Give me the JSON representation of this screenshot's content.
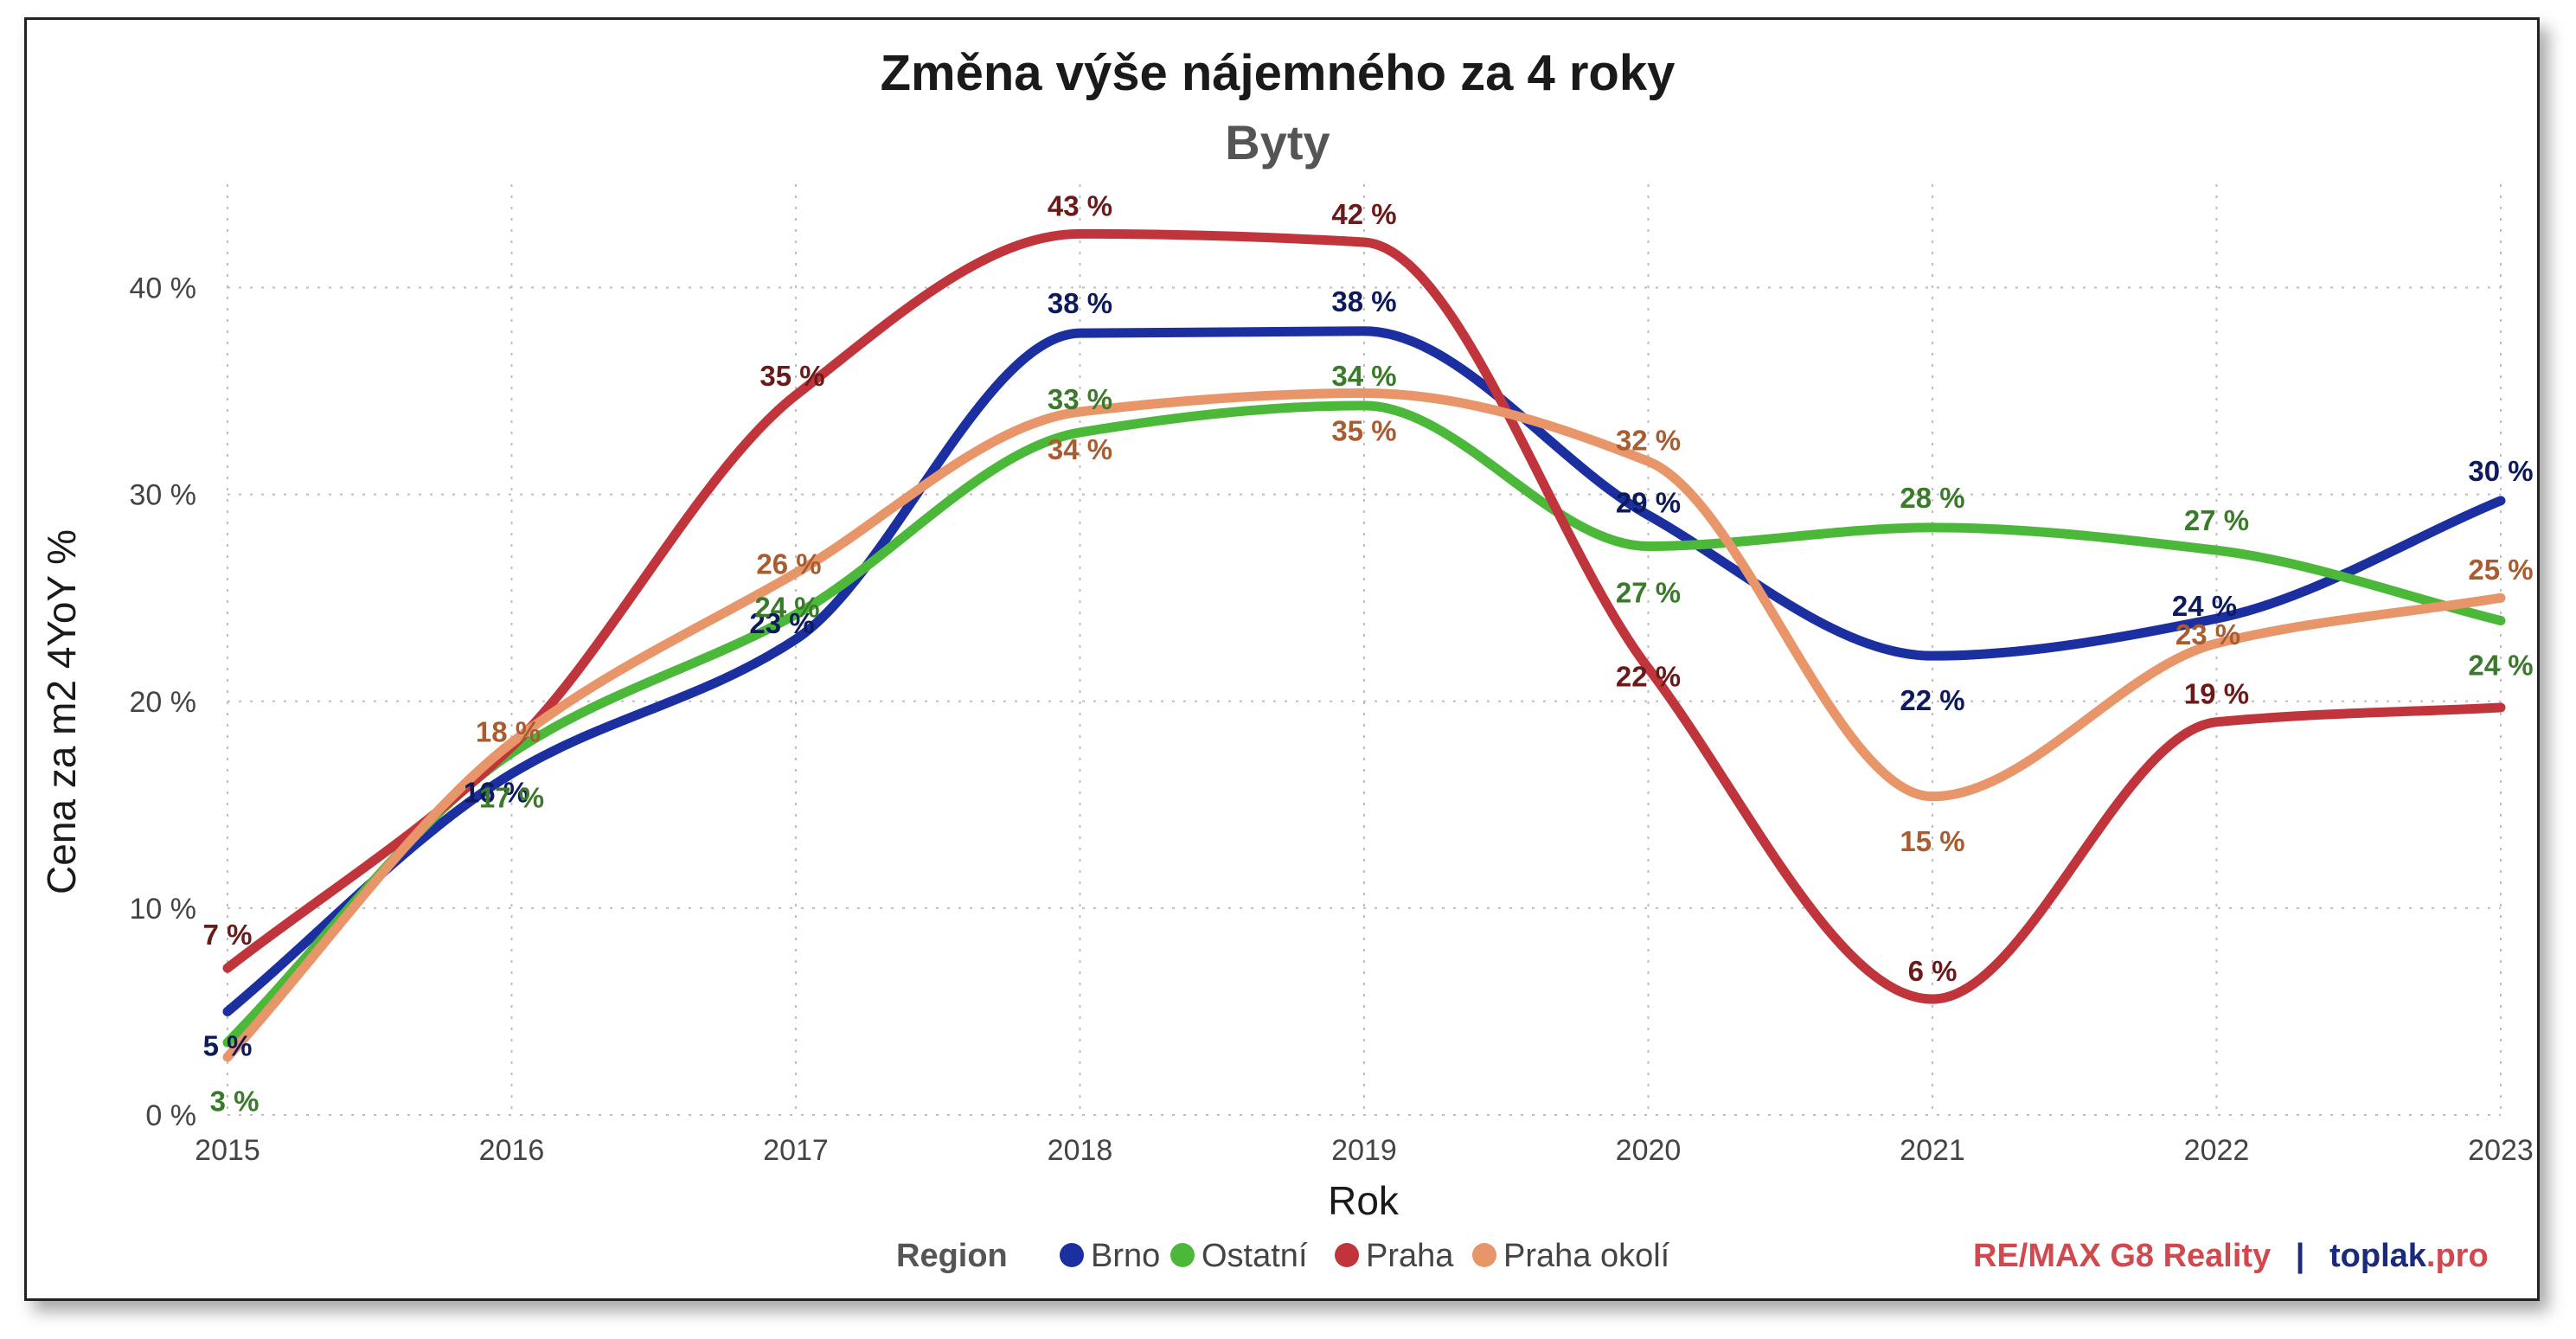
{
  "chart_data": {
    "type": "line",
    "title": "Změna výše nájemného za 4 roky",
    "subtitle": "Byty",
    "xlabel": "Rok",
    "ylabel": "Cena za m2 4YoY %",
    "x": [
      2015,
      2016,
      2017,
      2018,
      2019,
      2020,
      2021,
      2022,
      2023
    ],
    "ylim": [
      0,
      45
    ],
    "yticks": [
      0,
      10,
      20,
      30,
      40
    ],
    "ytick_labels": [
      "0 %",
      "10 %",
      "20 %",
      "30 %",
      "40 %"
    ],
    "grid": true,
    "legend_title": "Region",
    "legend_position": "bottom",
    "series": [
      {
        "name": "Brno",
        "color": "#1b2fa0",
        "label_color": "#0d1a5c",
        "values": [
          5,
          16.5,
          23,
          37.8,
          37.9,
          29,
          22.2,
          24,
          29.7
        ],
        "labels": [
          "5 %",
          "16 %",
          "23 %",
          "38 %",
          "38 %",
          "29 %",
          "22 %",
          "24 %",
          "30 %"
        ]
      },
      {
        "name": "Ostatní",
        "color": "#4cb83a",
        "label_color": "#3a7a2a",
        "values": [
          3.5,
          17.5,
          24.2,
          33,
          34.3,
          27.5,
          28.4,
          27.3,
          23.9
        ],
        "labels": [
          "3 %",
          "17 %",
          "24 %",
          "33 %",
          "34 %",
          "27 %",
          "28 %",
          "27 %",
          "24 %"
        ]
      },
      {
        "name": "Praha",
        "color": "#c0343c",
        "label_color": "#6b1a1a",
        "values": [
          7.1,
          17.8,
          34.8,
          42.6,
          42.2,
          21.6,
          5.6,
          19,
          19.7
        ],
        "labels": [
          "7 %",
          "",
          "35 %",
          "43 %",
          "42 %",
          "22 %",
          "6 %",
          "19 %",
          ""
        ]
      },
      {
        "name": "Praha okolí",
        "color": "#e8956a",
        "label_color": "#a85c30",
        "values": [
          2.8,
          18,
          26.2,
          34,
          34.9,
          31.6,
          15.4,
          22.8,
          25
        ],
        "labels": [
          "",
          "18 %",
          "26 %",
          "34 %",
          "35 %",
          "32 %",
          "15 %",
          "23 %",
          "25 %"
        ]
      }
    ]
  },
  "brand": {
    "part1": "RE/MAX G8 Reality",
    "separator": "|",
    "part2": "toplak",
    "part3": ".pro",
    "color_remax": "#d0494f",
    "color_separator": "#1b2a7a",
    "color_toplak": "#1b2a7a",
    "color_pro": "#d0494f"
  }
}
